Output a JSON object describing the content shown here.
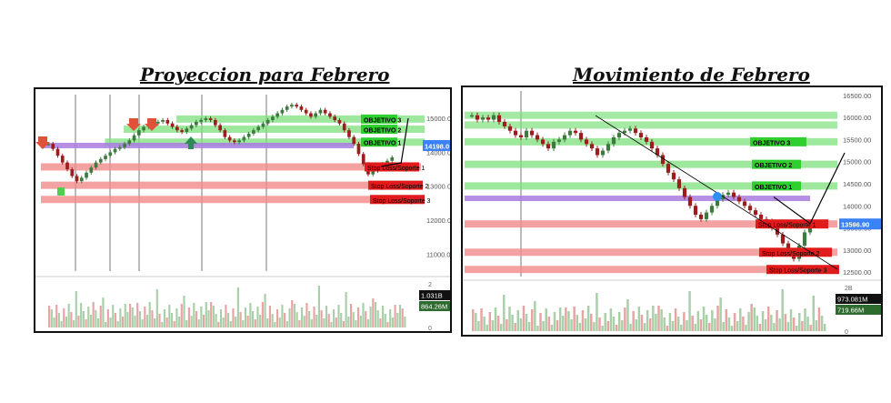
{
  "colors": {
    "bull": "#3d7a3d",
    "bear": "#9b1d1d",
    "target_zone": "#7ee07e",
    "stop_zone": "#f08a8a",
    "stop_label": "#e11b1b",
    "target_label": "#2fcf2f",
    "purple_line": "#a97be0",
    "price_tag": "#3b82f6",
    "vol_bull": "#a9cfa9",
    "vol_bear": "#e8a3a3"
  },
  "icons": [
    "down-arrow-icon",
    "up-arrow-icon",
    "p-marker-icon"
  ],
  "chart_data": [
    {
      "type": "candlestick",
      "title": "Proyeccion para Febrero",
      "ylim": [
        10500,
        15700
      ],
      "y_ticks": [
        "15000.0",
        "14000.0",
        "13000.0",
        "12000.0",
        "11000.0"
      ],
      "price_tag": "14198.0",
      "volume_ticks": [
        "2",
        "1",
        "0"
      ],
      "volume_tags": [
        "1.031B",
        "864.26M"
      ],
      "levels": [
        {
          "kind": "target",
          "label": "OBJETIVO 3",
          "y": 14980
        },
        {
          "kind": "target",
          "label": "OBJETIVO 2",
          "y": 14680
        },
        {
          "kind": "target",
          "label": "OBJETIVO 1",
          "y": 14300
        },
        {
          "kind": "stop",
          "label": "Stop Loss/Soporte 1",
          "y": 13570
        },
        {
          "kind": "stop",
          "label": "Stop Loss/Soporte 2",
          "y": 13030
        },
        {
          "kind": "stop",
          "label": "Stop Loss/Soporte 3",
          "y": 12610
        },
        {
          "kind": "purple",
          "label": "",
          "y": 14200
        }
      ],
      "close_series": [
        14250,
        14100,
        13900,
        13700,
        13500,
        13300,
        13150,
        13250,
        13400,
        13550,
        13700,
        13800,
        13900,
        14000,
        14100,
        14150,
        14250,
        14350,
        14500,
        14650,
        14750,
        14800,
        14850,
        14900,
        14950,
        14850,
        14750,
        14650,
        14600,
        14700,
        14800,
        14900,
        14950,
        15000,
        14950,
        14800,
        14650,
        14450,
        14350,
        14300,
        14350,
        14450,
        14550,
        14650,
        14750,
        14850,
        14950,
        15050,
        15150,
        15250,
        15350,
        15400,
        15350,
        15250,
        15150,
        15050,
        15150,
        15250,
        15150,
        15050,
        14950,
        14850,
        14650,
        14450,
        14250,
        13950,
        13650,
        13350,
        13450,
        13550,
        13650,
        13750,
        13850
      ]
    },
    {
      "type": "candlestick",
      "title": "Movimiento de Febrero",
      "ylim": [
        12400,
        16600
      ],
      "y_ticks": [
        "16500.00",
        "16000.00",
        "15500.00",
        "15000.00",
        "14500.00",
        "14000.00",
        "13500.00",
        "13000.00",
        "12500.00"
      ],
      "price_tag": "13596.90",
      "volume_ticks": [
        "2B",
        "0"
      ],
      "volume_tags": [
        "973.081M",
        "719.66M"
      ],
      "levels": [
        {
          "kind": "target",
          "label": "OBJETIVO 3",
          "y": 15450
        },
        {
          "kind": "target",
          "label": "OBJETIVO 2",
          "y": 14940
        },
        {
          "kind": "target",
          "label": "OBJETIVO 1",
          "y": 14450
        },
        {
          "kind": "stop",
          "label": "Stop Loss/Soporte 1",
          "y": 13590
        },
        {
          "kind": "stop",
          "label": "Stop Loss/Soporte 2",
          "y": 12950
        },
        {
          "kind": "stop",
          "label": "Stop Loss/Soporte 3",
          "y": 12560
        },
        {
          "kind": "purple",
          "label": "",
          "y": 14170
        },
        {
          "kind": "green_band",
          "label": "",
          "y": 16050
        },
        {
          "kind": "green_band",
          "label": "",
          "y": 15830
        }
      ],
      "close_series": [
        16050,
        15950,
        16000,
        15950,
        16050,
        15900,
        15800,
        15700,
        15600,
        15550,
        15700,
        15600,
        15500,
        15400,
        15300,
        15450,
        15500,
        15600,
        15700,
        15650,
        15500,
        15400,
        15300,
        15150,
        15250,
        15400,
        15550,
        15650,
        15700,
        15750,
        15650,
        15550,
        15450,
        15300,
        15150,
        14950,
        14750,
        14600,
        14400,
        14200,
        14000,
        13800,
        13700,
        13850,
        14000,
        14150,
        14250,
        14300,
        14200,
        14100,
        14000,
        13900,
        13800,
        13700,
        13650,
        13500,
        13350,
        13150,
        12950,
        12800,
        13100,
        13400,
        13600
      ]
    }
  ]
}
